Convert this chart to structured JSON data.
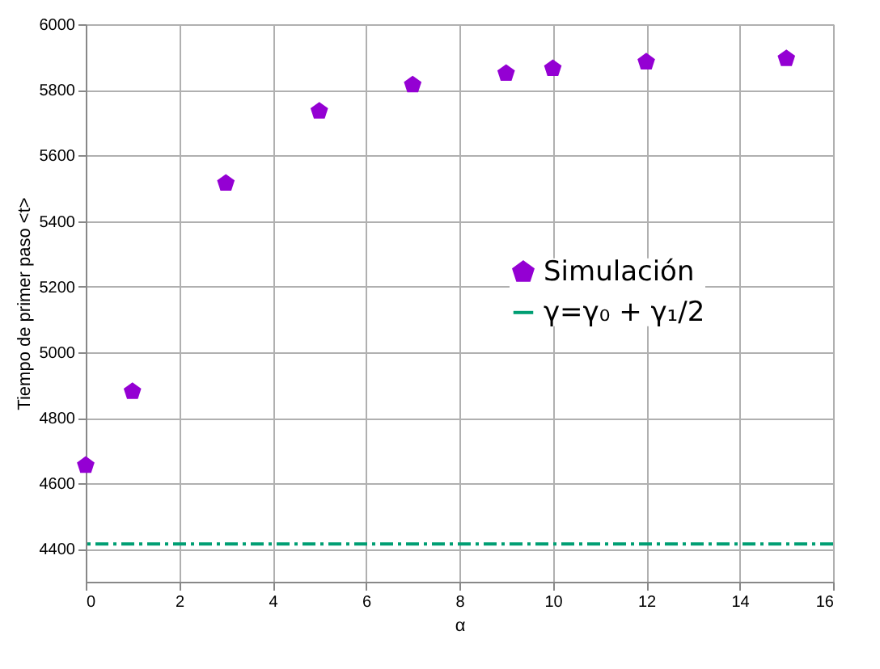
{
  "chart_data": {
    "type": "scatter",
    "xlabel": "α",
    "ylabel": "Tiempo de primer paso <t>",
    "x": [
      0,
      1,
      3,
      5,
      7,
      9,
      10,
      12,
      15
    ],
    "series": [
      {
        "name": "Simulación",
        "color": "#9400d3",
        "values": [
          4655,
          4880,
          5515,
          5735,
          5815,
          5850,
          5865,
          5885,
          5895
        ]
      }
    ],
    "ref_lines": [
      {
        "axis": "y",
        "value": 4415,
        "label": "γ=γ₀ + γ₁/2",
        "color": "#009e73",
        "line_style": "dashed"
      }
    ],
    "xlim": [
      0,
      16
    ],
    "xticks": [
      0,
      2,
      4,
      6,
      8,
      10,
      12,
      14,
      16
    ],
    "ylim": [
      4300,
      6000
    ],
    "yticks": [
      4400,
      4600,
      4800,
      5000,
      5200,
      5400,
      5600,
      5800,
      6000
    ],
    "grid": true,
    "legend": "right"
  }
}
